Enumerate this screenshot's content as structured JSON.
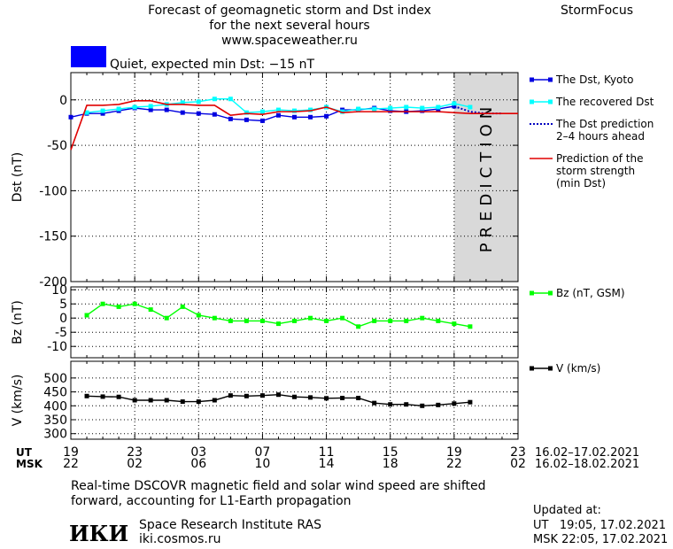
{
  "header": {
    "title_line1": "Forecast of geomagnetic storm and Dst index",
    "title_line2": "for the next several hours",
    "title_line3": "www.spaceweather.ru",
    "brand": "StormFocus",
    "status_text": "Quiet, expected min Dst: −15 nT",
    "status_color": "#0000ff"
  },
  "colors": {
    "dst_kyoto": "#0000e0",
    "dst_recovered": "#00ffff",
    "dst_prediction": "#0000c0",
    "storm_strength": "#e00000",
    "bz": "#00ff00",
    "v": "#000000",
    "prediction_zone": "#d9d9d9"
  },
  "time_axis": {
    "ut_label": "UT",
    "msk_label": "MSK",
    "ut_ticks": [
      "19",
      "23",
      "03",
      "07",
      "11",
      "15",
      "19",
      "23"
    ],
    "msk_ticks": [
      "22",
      "02",
      "06",
      "10",
      "14",
      "18",
      "22",
      "02"
    ],
    "ut_range_text": "16.02–17.02.2021",
    "msk_range_text": "16.02–18.02.2021"
  },
  "prediction_label": "PREDICTION",
  "footer": {
    "note_line1": "Real-time DSCOVR magnetic field and solar wind speed are shifted",
    "note_line2": "forward, accounting for L1-Earth propagation",
    "institute_logo": "ИКИ",
    "institute_name": "Space Research Institute RAS",
    "institute_url": "iki.cosmos.ru",
    "updated_label": "Updated at:",
    "updated_ut": "UT   19:05, 17.02.2021",
    "updated_msk": "MSK 22:05, 17.02.2021"
  },
  "chart_data": [
    {
      "type": "line",
      "ylabel": "Dst (nT)",
      "ylim": [
        -200,
        30
      ],
      "yticks": [
        0,
        -50,
        -100,
        -150,
        -200
      ],
      "xlim": [
        0,
        28
      ],
      "prediction_start_hour": 24,
      "legend": [
        {
          "key": "kyoto",
          "label_lines": [
            "The Dst, Kyoto"
          ]
        },
        {
          "key": "recovered",
          "label_lines": [
            "The recovered Dst"
          ]
        },
        {
          "key": "prediction",
          "label_lines": [
            "The Dst prediction",
            "2–4 hours ahead"
          ]
        },
        {
          "key": "storm",
          "label_lines": [
            "Prediction of the",
            "storm strength",
            "(min Dst)"
          ]
        }
      ],
      "series": [
        {
          "key": "kyoto",
          "x": [
            0,
            1,
            2,
            3,
            4,
            5,
            6,
            7,
            8,
            9,
            10,
            11,
            12,
            13,
            14,
            15,
            16,
            17,
            18,
            19,
            20,
            21,
            22,
            23,
            24
          ],
          "y": [
            -19,
            -15,
            -15,
            -12,
            -9,
            -11,
            -11,
            -14,
            -15,
            -16,
            -21,
            -22,
            -23,
            -17,
            -19,
            -19,
            -18,
            -11,
            -11,
            -9,
            -12,
            -13,
            -12,
            -10,
            -7
          ]
        },
        {
          "key": "recovered",
          "x": [
            1,
            2,
            3,
            4,
            5,
            6,
            7,
            8,
            9,
            10,
            11,
            12,
            13,
            14,
            15,
            16,
            17,
            18,
            19,
            20,
            21,
            22,
            23,
            24,
            25
          ],
          "y": [
            -14,
            -12,
            -10,
            -8,
            -7,
            -5,
            -3,
            -2,
            1,
            1,
            -14,
            -13,
            -11,
            -12,
            -11,
            -8,
            -13,
            -10,
            -10,
            -9,
            -8,
            -9,
            -8,
            -4,
            -8
          ]
        },
        {
          "key": "prediction",
          "x": [
            24,
            25,
            26,
            27
          ],
          "y": [
            -7,
            -13,
            -15,
            -15
          ]
        },
        {
          "key": "storm",
          "x": [
            0,
            1,
            2,
            3,
            4,
            5,
            6,
            7,
            8,
            9,
            10,
            11,
            12,
            13,
            14,
            15,
            16,
            17,
            18,
            19,
            20,
            21,
            22,
            23,
            24,
            25,
            26,
            27,
            28
          ],
          "y": [
            -55,
            -6,
            -6,
            -5,
            -1,
            -1,
            -5,
            -5,
            -6,
            -6,
            -17,
            -15,
            -16,
            -13,
            -13,
            -12,
            -8,
            -14,
            -13,
            -13,
            -13,
            -13,
            -13,
            -13,
            -14,
            -15,
            -15,
            -15,
            -15
          ]
        }
      ]
    },
    {
      "type": "line",
      "ylabel": "Bz (nT)",
      "ylim": [
        -14,
        11
      ],
      "yticks": [
        10,
        5,
        0,
        -5,
        -10
      ],
      "xlim": [
        0,
        28
      ],
      "legend": [
        {
          "key": "bz",
          "label_lines": [
            "Bz (nT, GSM)"
          ]
        }
      ],
      "series": [
        {
          "key": "bz",
          "x": [
            1,
            2,
            3,
            4,
            5,
            6,
            7,
            8,
            9,
            10,
            11,
            12,
            13,
            14,
            15,
            16,
            17,
            18,
            19,
            20,
            21,
            22,
            23,
            24,
            25
          ],
          "y": [
            1,
            5,
            4,
            5,
            3,
            0,
            4,
            1,
            0,
            -1,
            -1,
            -1,
            -2,
            -1,
            0,
            -1,
            0,
            -3,
            -1,
            -1,
            -1,
            0,
            -1,
            -2,
            -3
          ]
        }
      ]
    },
    {
      "type": "line",
      "ylabel": "V (km/s)",
      "ylim": [
        280,
        560
      ],
      "yticks": [
        500,
        450,
        400,
        350,
        300
      ],
      "ytick_labels": [
        "500",
        "450",
        "400",
        "350",
        "300"
      ],
      "xlim": [
        0,
        28
      ],
      "legend": [
        {
          "key": "v",
          "label_lines": [
            "V (km/s)"
          ]
        }
      ],
      "series": [
        {
          "key": "v",
          "x": [
            1,
            2,
            3,
            4,
            5,
            6,
            7,
            8,
            9,
            10,
            11,
            12,
            13,
            14,
            15,
            16,
            17,
            18,
            19,
            20,
            21,
            22,
            23,
            24,
            25
          ],
          "y": [
            435,
            433,
            432,
            420,
            420,
            420,
            415,
            415,
            420,
            437,
            435,
            437,
            440,
            432,
            430,
            427,
            428,
            428,
            410,
            405,
            405,
            400,
            403,
            408,
            413
          ]
        }
      ]
    }
  ]
}
